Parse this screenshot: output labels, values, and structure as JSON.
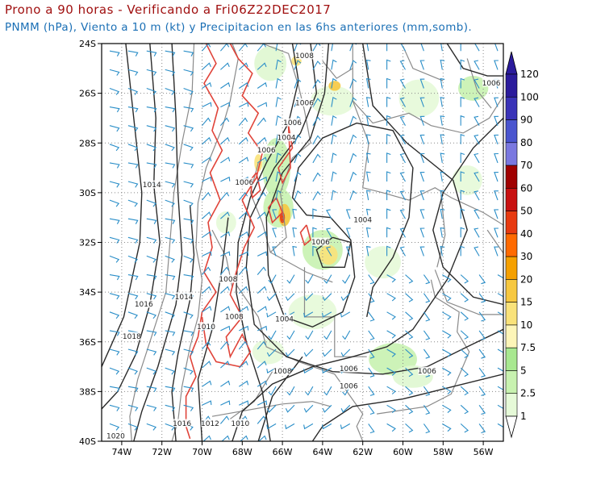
{
  "header": {
    "title": "Prono a 90 horas - Verificando a Fri06Z22DEC2017",
    "subtitle": "PNMM (hPa), Viento a 10 m (kt) y Precipitacion en las 6hs anteriores (mm,somb)."
  },
  "map": {
    "lat_labels": [
      "24S",
      "26S",
      "28S",
      "30S",
      "32S",
      "34S",
      "36S",
      "38S",
      "40S"
    ],
    "lon_labels": [
      "74W",
      "72W",
      "70W",
      "68W",
      "66W",
      "64W",
      "62W",
      "60W",
      "58W",
      "56W"
    ],
    "extent": {
      "lon_min": -75,
      "lon_max": -55,
      "lat_min": -40,
      "lat_max": -24
    },
    "isobar_labels": [
      {
        "text": "1008",
        "lon": -64.9,
        "lat": -24.5
      },
      {
        "text": "1006",
        "lon": -64.9,
        "lat": -26.4
      },
      {
        "text": "1006",
        "lon": -55.6,
        "lat": -25.6
      },
      {
        "text": "1006",
        "lon": -65.5,
        "lat": -27.2
      },
      {
        "text": "1006",
        "lon": -66.8,
        "lat": -28.3
      },
      {
        "text": "1004",
        "lon": -65.8,
        "lat": -27.8
      },
      {
        "text": "1006",
        "lon": -67.9,
        "lat": -29.6
      },
      {
        "text": "1014",
        "lon": -72.5,
        "lat": -29.7
      },
      {
        "text": "1004",
        "lon": -62.0,
        "lat": -31.1
      },
      {
        "text": "1006",
        "lon": -64.1,
        "lat": -32.0
      },
      {
        "text": "1008",
        "lon": -68.7,
        "lat": -33.5
      },
      {
        "text": "1014",
        "lon": -70.9,
        "lat": -34.2
      },
      {
        "text": "1016",
        "lon": -72.9,
        "lat": -34.5
      },
      {
        "text": "1008",
        "lon": -68.4,
        "lat": -35.0
      },
      {
        "text": "1004",
        "lon": -65.9,
        "lat": -35.1
      },
      {
        "text": "1010",
        "lon": -69.8,
        "lat": -35.4
      },
      {
        "text": "1018",
        "lon": -73.5,
        "lat": -35.8
      },
      {
        "text": "1006",
        "lon": -62.7,
        "lat": -37.1
      },
      {
        "text": "1006",
        "lon": -58.8,
        "lat": -37.2
      },
      {
        "text": "1008",
        "lon": -66.0,
        "lat": -37.2
      },
      {
        "text": "1006",
        "lon": -62.7,
        "lat": -37.8
      },
      {
        "text": "1016",
        "lon": -71.0,
        "lat": -39.3
      },
      {
        "text": "1012",
        "lon": -69.6,
        "lat": -39.3
      },
      {
        "text": "1010",
        "lon": -68.1,
        "lat": -39.3
      },
      {
        "text": "1020",
        "lon": -74.3,
        "lat": -39.8
      }
    ]
  },
  "colorbar": {
    "labels": [
      "120",
      "100",
      "90",
      "80",
      "70",
      "60",
      "50",
      "40",
      "30",
      "20",
      "15",
      "10",
      "7.5",
      "5",
      "2.5",
      "1"
    ],
    "colors": [
      "#2b1b9c",
      "#3a33b8",
      "#4a55cf",
      "#7a78e0",
      "#a00000",
      "#c81010",
      "#e83a10",
      "#ff6a00",
      "#f5a000",
      "#f7c840",
      "#f9e27a",
      "#fdf5b8",
      "#a8e890",
      "#c8f2b0",
      "#e6fad8"
    ]
  }
}
